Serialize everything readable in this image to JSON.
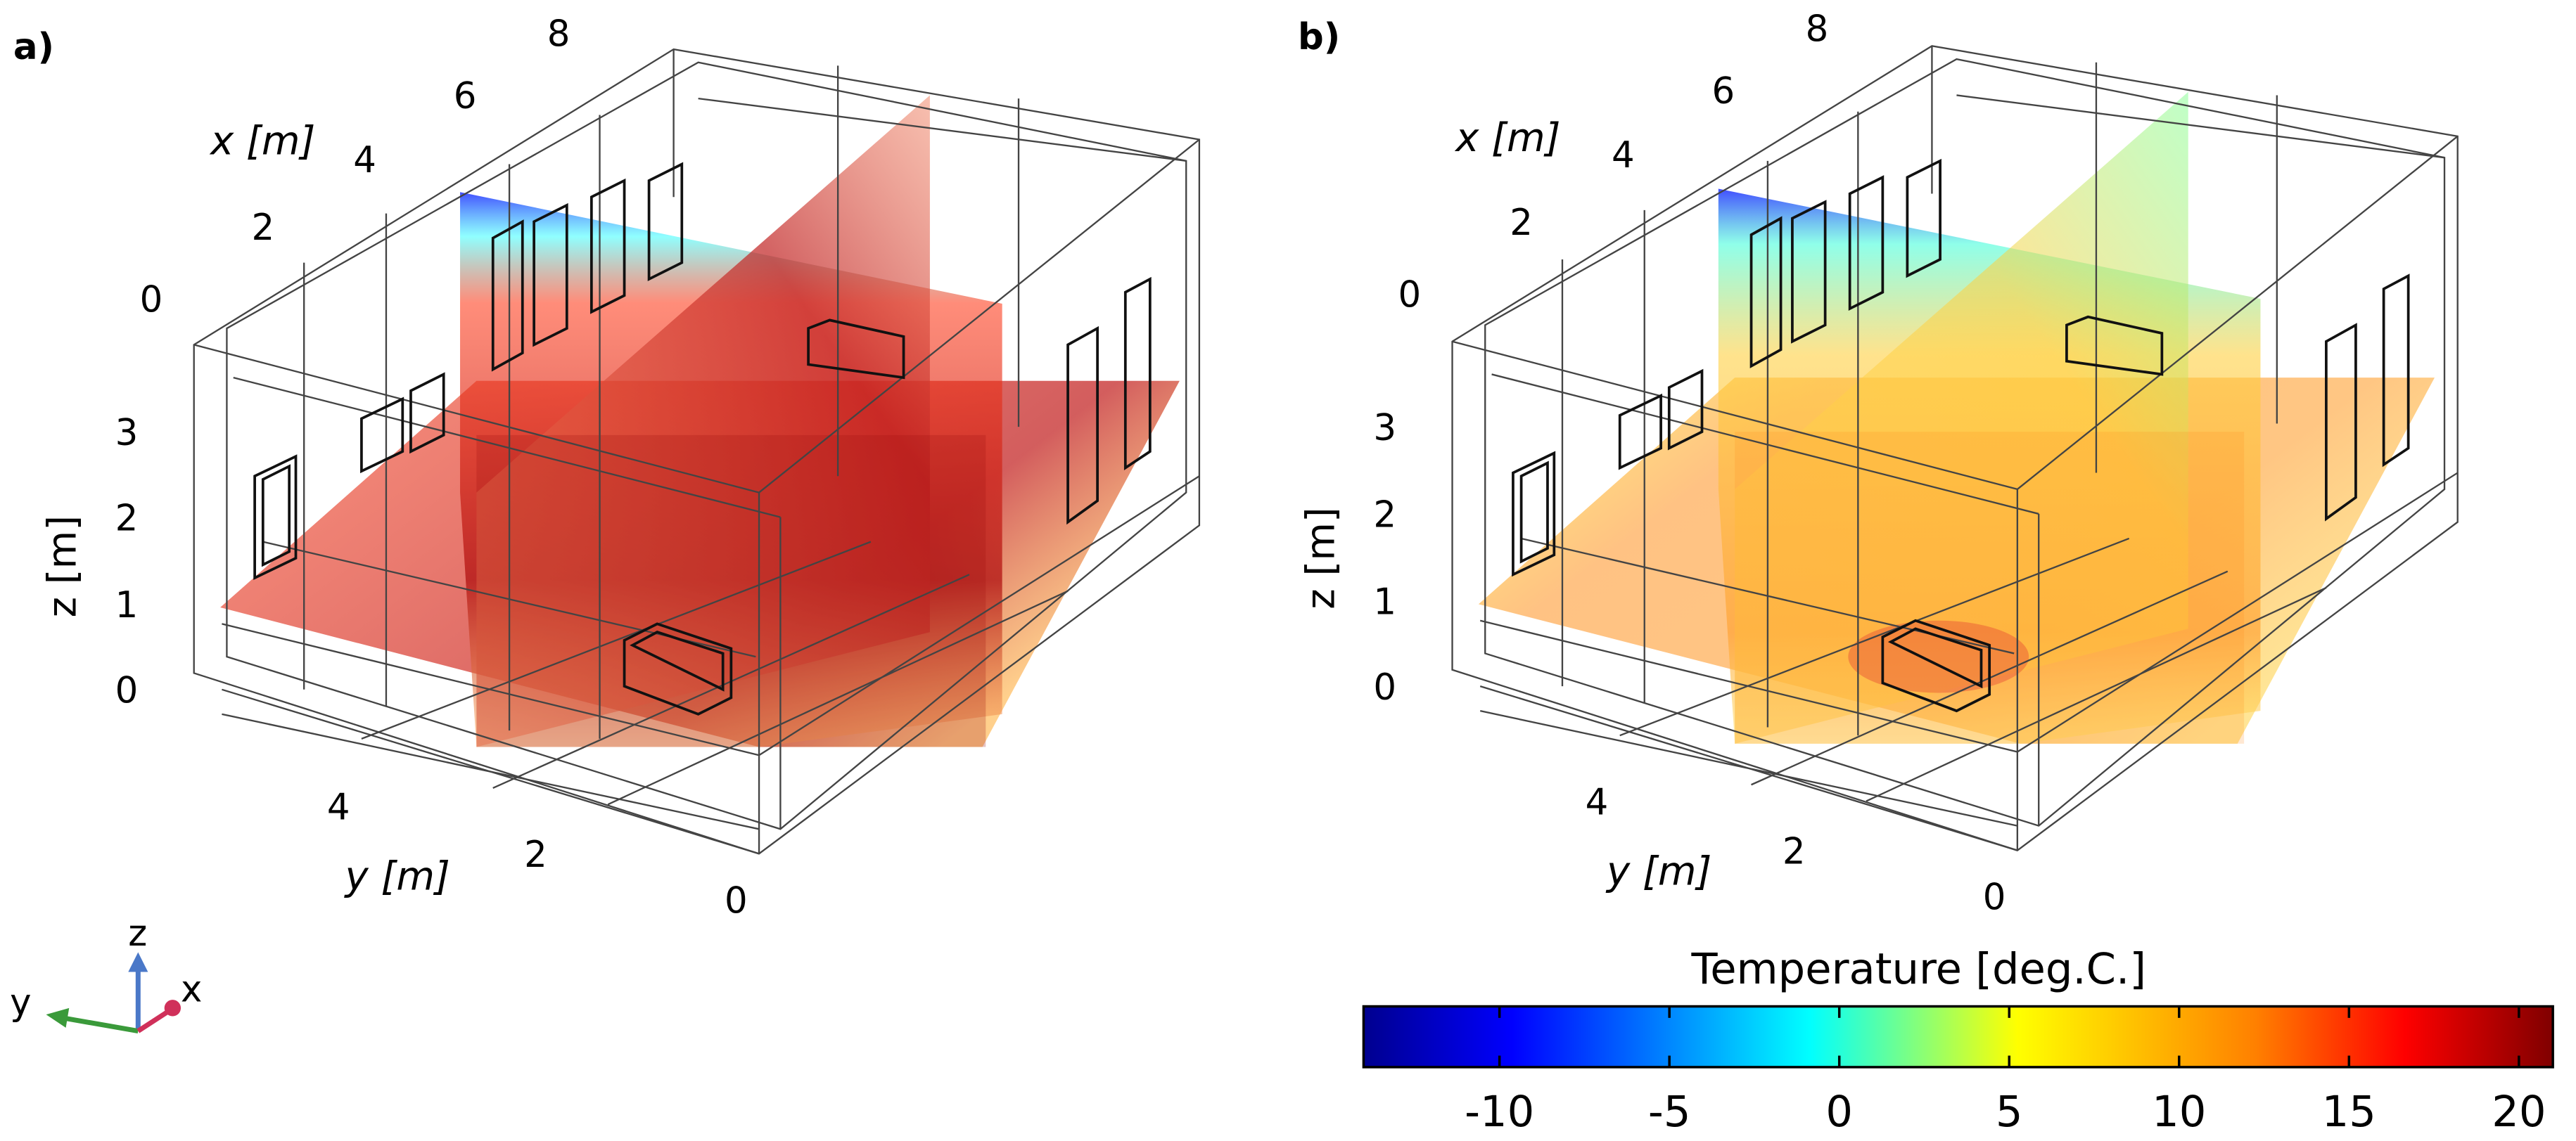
{
  "panels": [
    {
      "label": "a)",
      "x_axis_title": "x [m]",
      "y_axis_title": "y [m]",
      "z_axis_title": "z [m]",
      "x_ticks": [
        "0",
        "2",
        "4",
        "6",
        "8"
      ],
      "y_ticks": [
        "4",
        "2",
        "0"
      ],
      "z_ticks": [
        "3",
        "2",
        "1",
        "0"
      ],
      "state": "warm"
    },
    {
      "label": "b)",
      "x_axis_title": "x [m]",
      "y_axis_title": "y [m]",
      "z_axis_title": "z [m]",
      "x_ticks": [
        "0",
        "2",
        "4",
        "6",
        "8"
      ],
      "y_ticks": [
        "4",
        "2",
        "0"
      ],
      "z_ticks": [
        "3",
        "2",
        "1",
        "0"
      ],
      "state": "moderate"
    }
  ],
  "colorbar": {
    "title": "Temperature [deg.C.]",
    "ticks": [
      "-10",
      "-5",
      "0",
      "5",
      "10",
      "15",
      "20"
    ],
    "range": [
      -14,
      21
    ],
    "colormap": "jet"
  },
  "triad": {
    "z_label": "z",
    "y_label": "y",
    "x_label": "x",
    "colors": {
      "z": "#4a78c8",
      "y": "#3a9a3a",
      "x": "#d0305a"
    }
  }
}
